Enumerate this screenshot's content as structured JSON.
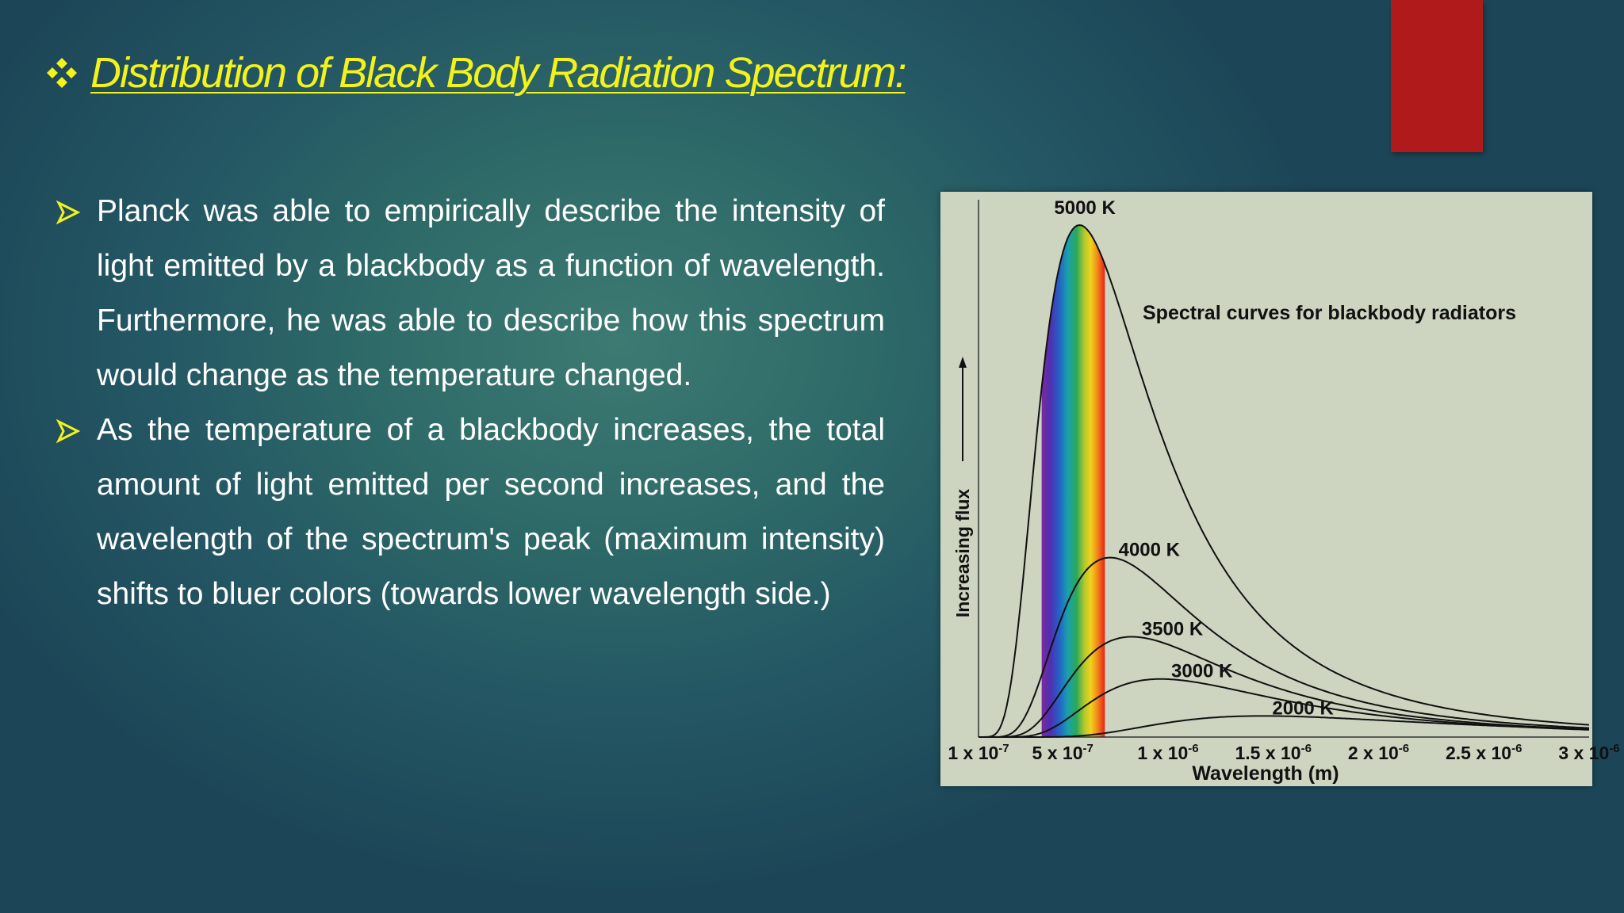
{
  "slide": {
    "title": "Distribution of Black Body Radiation Spectrum:",
    "bullets": [
      "Planck was able to empirically describe the intensity of light emitted by a blackbody as a function of wavelength. Furthermore, he was able to describe how this spectrum would change as the temperature changed.",
      "As the temperature of a blackbody increases, the total amount of light emitted per second increases, and the wavelength of the spectrum's peak (maximum intensity) shifts to bluer colors (towards lower wavelength side.)"
    ],
    "colors": {
      "title": "#f3f21a",
      "bullet_arrow": "#f3f21a",
      "accent_tab": "#b01a1a",
      "text": "#ffffff"
    },
    "icons": {
      "title_bullet": "four-diamonds-icon",
      "list_bullet": "arrow-bullet-icon"
    }
  },
  "chart_data": {
    "type": "line",
    "title": "Spectral curves for blackbody radiators",
    "xlabel": "Wavelength (m)",
    "ylabel": "Increasing flux",
    "x_tick_labels": [
      {
        "base": "1 x 10",
        "exp": "-7"
      },
      {
        "base": "5 x 10",
        "exp": "-7"
      },
      {
        "base": "1 x 10",
        "exp": "-6"
      },
      {
        "base": "1.5 x 10",
        "exp": "-6"
      },
      {
        "base": "2 x 10",
        "exp": "-6"
      },
      {
        "base": "2.5 x 10",
        "exp": "-6"
      },
      {
        "base": "3 x 10",
        "exp": "-6"
      }
    ],
    "x_ticks": [
      1e-07,
      5e-07,
      1e-06,
      1.5e-06,
      2e-06,
      2.5e-06,
      3e-06
    ],
    "xlim": [
      1e-07,
      3e-06
    ],
    "ylim": [
      0,
      1
    ],
    "visible_band": [
      4e-07,
      7e-07
    ],
    "series": [
      {
        "name": "5000 K",
        "temperature": 5000,
        "peak_x": 5.8e-07,
        "peak_y": 0.97
      },
      {
        "name": "4000 K",
        "temperature": 4000,
        "peak_x": 7.2e-07,
        "peak_y": 0.34
      },
      {
        "name": "3500 K",
        "temperature": 3500,
        "peak_x": 8.3e-07,
        "peak_y": 0.19
      },
      {
        "name": "3000 K",
        "temperature": 3000,
        "peak_x": 9.7e-07,
        "peak_y": 0.11
      },
      {
        "name": "2000 K",
        "temperature": 2000,
        "peak_x": 1.45e-06,
        "peak_y": 0.04
      }
    ]
  }
}
